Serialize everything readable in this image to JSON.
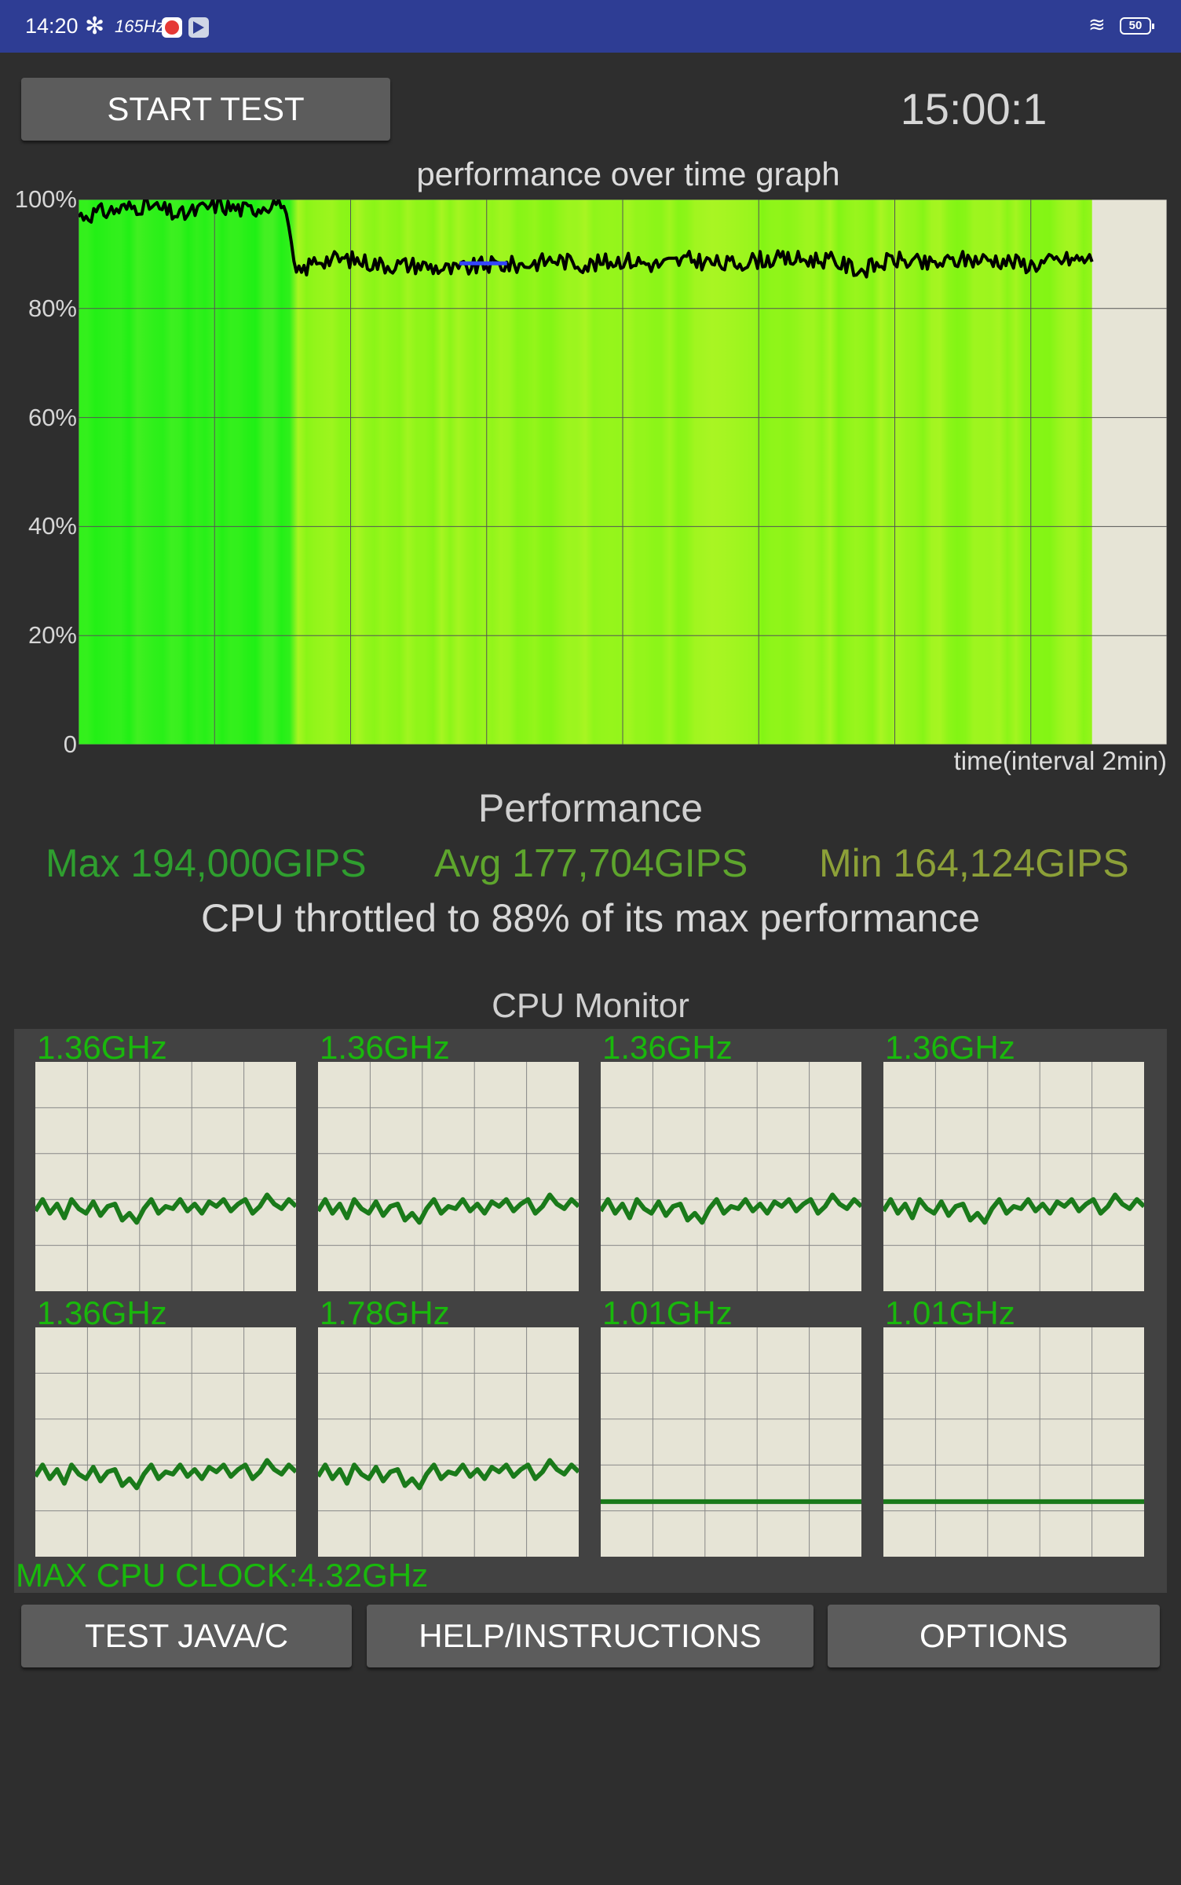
{
  "status_bar": {
    "time": "14:20",
    "fan_icon": "fan-icon",
    "refresh_rate": "165Hz",
    "battery": "50",
    "wifi_icon": "wifi-icon"
  },
  "controls": {
    "start_test": "START TEST",
    "timer": "15:00:1",
    "test_java_c": "TEST JAVA/C",
    "help": "HELP/INSTRUCTIONS",
    "options": "OPTIONS"
  },
  "colors": {
    "accent_green": "#19b80c",
    "stat_max": "#2f9e2f",
    "stat_avg": "#5ea52d",
    "stat_min": "#8ca038",
    "graph_bg": "#e6e4d6",
    "line": "#000000",
    "core_line": "#1a7a1a"
  },
  "chart_data": {
    "type": "area",
    "title": "performance over time graph",
    "xlabel": "time(interval 2min)",
    "ylabel": "",
    "yticks": [
      "100%",
      "80%",
      "60%",
      "40%",
      "20%",
      "0"
    ],
    "ylim": [
      0,
      100
    ],
    "xlim_minutes": [
      0,
      16
    ],
    "x_interval_minutes": 2,
    "grid": true,
    "series": [
      {
        "x": [
          0,
          0.5,
          1,
          1.5,
          2,
          2.5,
          3,
          3.2,
          3.5,
          4,
          4.5,
          5,
          5.5,
          6,
          6.5,
          7,
          7.5,
          8,
          8.5,
          9,
          9.5,
          10,
          10.5,
          11,
          11.5,
          12,
          12.5,
          13,
          13.5,
          14,
          14.5,
          14.9
        ],
        "values": [
          97,
          98,
          99,
          97,
          99,
          98,
          100,
          86,
          89,
          89,
          88,
          88,
          87,
          88,
          88,
          89,
          88,
          89,
          88,
          89,
          88,
          89,
          89,
          89,
          87,
          89,
          88,
          89,
          89,
          88,
          89,
          89
        ]
      }
    ]
  },
  "performance": {
    "heading": "Performance",
    "max": "Max 194,000GIPS",
    "avg": "Avg 177,704GIPS",
    "min": "Min 164,124GIPS",
    "throttle": "CPU throttled to 88% of its max performance"
  },
  "cpu_monitor": {
    "heading": "CPU Monitor",
    "cores": [
      {
        "freq": "1.36GHz",
        "active": true
      },
      {
        "freq": "1.36GHz",
        "active": true
      },
      {
        "freq": "1.36GHz",
        "active": true
      },
      {
        "freq": "1.36GHz",
        "active": true
      },
      {
        "freq": "1.36GHz",
        "active": true
      },
      {
        "freq": "1.78GHz",
        "active": true
      },
      {
        "freq": "1.01GHz",
        "active": false
      },
      {
        "freq": "1.01GHz",
        "active": false
      }
    ],
    "max_clock": "MAX CPU CLOCK:4.32GHz"
  }
}
